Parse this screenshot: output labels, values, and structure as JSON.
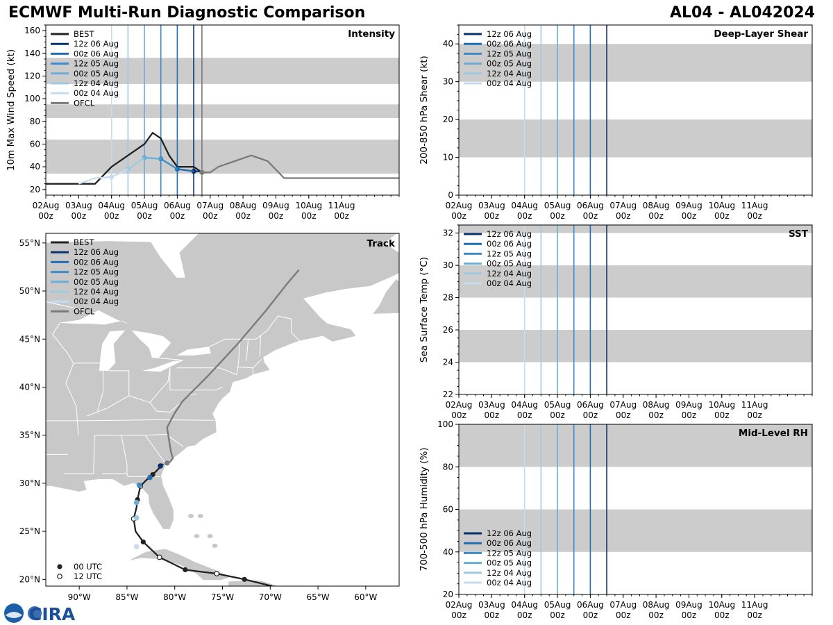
{
  "header": {
    "title": "ECMWF Multi-Run Diagnostic Comparison",
    "storm_id": "AL04 - AL042024"
  },
  "logo": {
    "text": "CIRA"
  },
  "colors": {
    "best": "#222222",
    "ofcl": "#7a7a7a",
    "band": "#cccccc",
    "runs": {
      "12z 06 Aug": "#08306b",
      "00z 06 Aug": "#1f6eb4",
      "12z 05 Aug": "#3d8bc7",
      "00z 05 Aug": "#6aaed6",
      "12z 04 Aug": "#9ecae1",
      "00z 04 Aug": "#c6dbef"
    }
  },
  "time_axis": {
    "ticks": [
      {
        "day": 2,
        "label": "02Aug\n00z"
      },
      {
        "day": 3,
        "label": "03Aug\n00z"
      },
      {
        "day": 4,
        "label": "04Aug\n00z"
      },
      {
        "day": 5,
        "label": "05Aug\n00z"
      },
      {
        "day": 6,
        "label": "06Aug\n00z"
      },
      {
        "day": 7,
        "label": "07Aug\n00z"
      },
      {
        "day": 8,
        "label": "08Aug\n00z"
      },
      {
        "day": 9,
        "label": "09Aug\n00z"
      },
      {
        "day": 10,
        "label": "10Aug\n00z"
      },
      {
        "day": 11,
        "label": "11Aug\n00z"
      }
    ],
    "range_days": [
      2,
      12.75
    ]
  },
  "chart_data": [
    {
      "id": "intensity",
      "type": "line",
      "panel_label": "Intensity",
      "ylabel": "10m Max Wind Speed (kt)",
      "ylim": [
        15,
        165
      ],
      "yticks": [
        20,
        40,
        60,
        80,
        100,
        120,
        140,
        160
      ],
      "bands": [
        [
          34,
          64
        ],
        [
          83,
          95
        ],
        [
          113,
          136
        ]
      ],
      "run_lines": [
        {
          "name": "00z 04 Aug",
          "day": 4.0
        },
        {
          "name": "12z 04 Aug",
          "day": 4.5
        },
        {
          "name": "00z 05 Aug",
          "day": 5.0
        },
        {
          "name": "12z 05 Aug",
          "day": 5.5
        },
        {
          "name": "00z 06 Aug",
          "day": 6.0
        },
        {
          "name": "12z 06 Aug",
          "day": 6.5
        }
      ],
      "ofcl_vline_day": 6.75,
      "legend": [
        "BEST",
        "12z 06 Aug",
        "00z 06 Aug",
        "12z 05 Aug",
        "00z 05 Aug",
        "12z 04 Aug",
        "00z 04 Aug",
        "OFCL"
      ],
      "series": [
        {
          "name": "BEST",
          "points": [
            [
              2.0,
              25
            ],
            [
              3.0,
              25
            ],
            [
              3.5,
              25
            ],
            [
              4.0,
              40
            ],
            [
              4.5,
              50
            ],
            [
              5.0,
              60
            ],
            [
              5.25,
              70
            ],
            [
              5.5,
              65
            ],
            [
              5.75,
              50
            ],
            [
              6.0,
              40
            ],
            [
              6.5,
              40
            ],
            [
              6.75,
              35
            ]
          ]
        },
        {
          "name": "12z 06 Aug",
          "points": [
            [
              6.5,
              36
            ],
            [
              6.75,
              36
            ]
          ],
          "marker_day": 6.5
        },
        {
          "name": "00z 06 Aug",
          "points": [
            [
              6.0,
              38
            ],
            [
              6.5,
              36
            ]
          ],
          "marker_day": 6.0
        },
        {
          "name": "12z 05 Aug",
          "points": [
            [
              5.5,
              47
            ],
            [
              6.0,
              38
            ]
          ],
          "marker_day": 5.5
        },
        {
          "name": "00z 05 Aug",
          "points": [
            [
              5.0,
              48
            ],
            [
              5.5,
              47
            ]
          ],
          "marker_day": 5.0
        },
        {
          "name": "12z 04 Aug",
          "points": [
            [
              4.5,
              38
            ],
            [
              5.0,
              48
            ]
          ],
          "marker_day": 4.5
        },
        {
          "name": "00z 04 Aug",
          "points": [
            [
              3.0,
              25
            ],
            [
              3.5,
              30
            ],
            [
              4.0,
              31
            ],
            [
              4.5,
              38
            ]
          ],
          "marker_day": 4.0
        },
        {
          "name": "OFCL",
          "points": [
            [
              6.75,
              35
            ],
            [
              7.0,
              35
            ],
            [
              7.25,
              40
            ],
            [
              7.75,
              45
            ],
            [
              8.25,
              50
            ],
            [
              8.75,
              45
            ],
            [
              9.25,
              30
            ],
            [
              12.75,
              30
            ]
          ]
        }
      ]
    },
    {
      "id": "shear",
      "type": "line",
      "panel_label": "Deep-Layer Shear",
      "ylabel": "200-850 hPa Shear (kt)",
      "ylim": [
        0,
        45
      ],
      "yticks": [
        0,
        10,
        20,
        30,
        40
      ],
      "bands": [
        [
          10,
          20
        ],
        [
          30,
          40
        ]
      ],
      "run_lines": [
        {
          "name": "00z 04 Aug",
          "day": 4.0
        },
        {
          "name": "12z 04 Aug",
          "day": 4.5
        },
        {
          "name": "00z 05 Aug",
          "day": 5.0
        },
        {
          "name": "12z 05 Aug",
          "day": 5.5
        },
        {
          "name": "00z 06 Aug",
          "day": 6.0
        },
        {
          "name": "12z 06 Aug",
          "day": 6.5
        }
      ],
      "legend": [
        "12z 06 Aug",
        "00z 06 Aug",
        "12z 05 Aug",
        "00z 05 Aug",
        "12z 04 Aug",
        "00z 04 Aug"
      ],
      "legend_position": "top-left"
    },
    {
      "id": "sst",
      "type": "line",
      "panel_label": "SST",
      "ylabel": "Sea Surface Temp (°C)",
      "ylim": [
        22,
        32.5
      ],
      "yticks": [
        22,
        24,
        26,
        28,
        30,
        32
      ],
      "bands": [
        [
          24,
          26
        ],
        [
          28,
          30
        ],
        [
          32,
          32.5
        ]
      ],
      "run_lines": [
        {
          "name": "00z 04 Aug",
          "day": 4.0
        },
        {
          "name": "12z 04 Aug",
          "day": 4.5
        },
        {
          "name": "00z 05 Aug",
          "day": 5.0
        },
        {
          "name": "12z 05 Aug",
          "day": 5.5
        },
        {
          "name": "00z 06 Aug",
          "day": 6.0
        },
        {
          "name": "12z 06 Aug",
          "day": 6.5
        }
      ],
      "legend": [
        "12z 06 Aug",
        "00z 06 Aug",
        "12z 05 Aug",
        "00z 05 Aug",
        "12z 04 Aug",
        "00z 04 Aug"
      ],
      "legend_position": "top-left"
    },
    {
      "id": "rh",
      "type": "line",
      "panel_label": "Mid-Level RH",
      "ylabel": "700-500 hPa Humidity (%)",
      "ylim": [
        20,
        100
      ],
      "yticks": [
        20,
        40,
        60,
        80,
        100
      ],
      "bands": [
        [
          40,
          60
        ],
        [
          80,
          100
        ]
      ],
      "run_lines": [
        {
          "name": "00z 04 Aug",
          "day": 4.0
        },
        {
          "name": "12z 04 Aug",
          "day": 4.5
        },
        {
          "name": "00z 05 Aug",
          "day": 5.0
        },
        {
          "name": "12z 05 Aug",
          "day": 5.5
        },
        {
          "name": "00z 06 Aug",
          "day": 6.0
        },
        {
          "name": "12z 06 Aug",
          "day": 6.5
        }
      ],
      "legend": [
        "12z 06 Aug",
        "00z 06 Aug",
        "12z 05 Aug",
        "00z 05 Aug",
        "12z 04 Aug",
        "00z 04 Aug"
      ],
      "legend_position": "bottom-left"
    },
    {
      "id": "track",
      "type": "line",
      "panel_label": "Track",
      "xlim": [
        -93.5,
        -56.5
      ],
      "ylim": [
        19.3,
        56
      ],
      "xticks": [
        {
          "v": -90,
          "label": "90°W"
        },
        {
          "v": -85,
          "label": "85°W"
        },
        {
          "v": -80,
          "label": "80°W"
        },
        {
          "v": -75,
          "label": "75°W"
        },
        {
          "v": -70,
          "label": "70°W"
        },
        {
          "v": -65,
          "label": "65°W"
        },
        {
          "v": -60,
          "label": "60°W"
        }
      ],
      "yticks": [
        {
          "v": 20,
          "label": "20°N"
        },
        {
          "v": 25,
          "label": "25°N"
        },
        {
          "v": 30,
          "label": "30°N"
        },
        {
          "v": 35,
          "label": "35°N"
        },
        {
          "v": 40,
          "label": "40°N"
        },
        {
          "v": 45,
          "label": "45°N"
        },
        {
          "v": 50,
          "label": "50°N"
        },
        {
          "v": 55,
          "label": "55°N"
        }
      ],
      "legend": [
        "BEST",
        "12z 06 Aug",
        "00z 06 Aug",
        "12z 05 Aug",
        "00z 05 Aug",
        "12z 04 Aug",
        "00z 04 Aug",
        "OFCL"
      ],
      "marker_legend": [
        "00 UTC",
        "12 UTC"
      ],
      "best_track": [
        [
          -69.8,
          19.3
        ],
        [
          -72.7,
          20.0
        ],
        [
          -75.6,
          20.6
        ],
        [
          -78.9,
          21.0
        ],
        [
          -81.6,
          22.3
        ],
        [
          -83.3,
          23.9
        ],
        [
          -84.1,
          25.0
        ],
        [
          -84.3,
          26.3
        ],
        [
          -84.0,
          27.5
        ],
        [
          -83.9,
          28.3
        ],
        [
          -83.6,
          29.7
        ],
        [
          -83.0,
          30.3
        ],
        [
          -82.3,
          30.9
        ],
        [
          -81.6,
          31.6
        ],
        [
          -81.2,
          32.0
        ]
      ],
      "best_markers_00z": [
        [
          -72.7,
          20.0
        ],
        [
          -78.9,
          21.0
        ],
        [
          -83.3,
          23.9
        ],
        [
          -83.9,
          28.3
        ],
        [
          -82.3,
          30.9
        ]
      ],
      "best_markers_12z": [
        [
          -75.6,
          20.6
        ],
        [
          -81.6,
          22.3
        ],
        [
          -84.3,
          26.3
        ],
        [
          -83.6,
          29.7
        ]
      ],
      "ofcl_track": [
        [
          -81.0,
          32.0
        ],
        [
          -80.5,
          32.2
        ],
        [
          -80.2,
          32.6
        ],
        [
          -80.4,
          33.3
        ],
        [
          -80.6,
          34.5
        ],
        [
          -80.8,
          35.8
        ],
        [
          -80.0,
          37.3
        ],
        [
          -79.2,
          38.5
        ],
        [
          -76.5,
          41.2
        ],
        [
          -73.5,
          44.4
        ],
        [
          -70.5,
          47.9
        ],
        [
          -68.2,
          50.8
        ],
        [
          -67.0,
          52.2
        ]
      ],
      "ofcl_marker": [
        -80.8,
        32.1
      ],
      "run_positions": [
        {
          "name": "00z 04 Aug",
          "point": [
            -84.0,
            23.4
          ]
        },
        {
          "name": "12z 04 Aug",
          "point": [
            -84.0,
            26.4
          ]
        },
        {
          "name": "00z 05 Aug",
          "point": [
            -84.0,
            28.0
          ]
        },
        {
          "name": "12z 05 Aug",
          "point": [
            -83.7,
            29.8
          ]
        },
        {
          "name": "00z 06 Aug",
          "point": [
            -82.6,
            30.6
          ]
        },
        {
          "name": "12z 06 Aug",
          "point": [
            -81.5,
            31.8
          ]
        }
      ]
    }
  ]
}
